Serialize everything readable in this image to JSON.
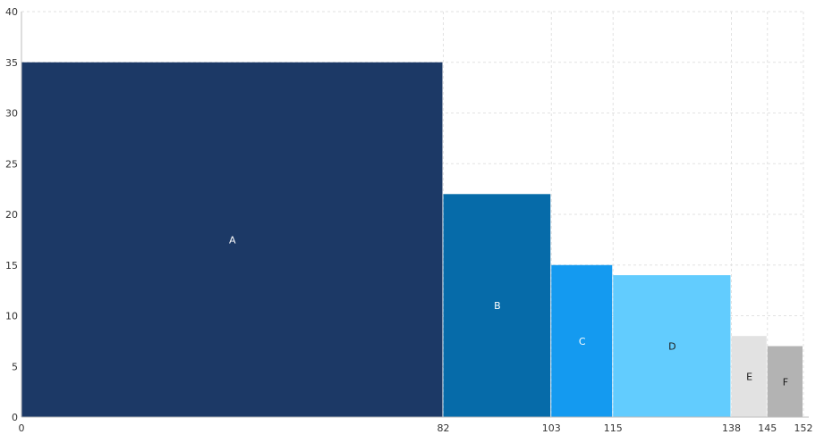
{
  "chart_data": {
    "type": "bar",
    "variant": "variable-width (marimekko)",
    "title": "",
    "xlabel": "",
    "ylabel": "",
    "xlim": [
      0,
      152
    ],
    "ylim": [
      0,
      40
    ],
    "x_ticks": [
      0,
      82,
      103,
      115,
      138,
      145,
      152
    ],
    "y_ticks": [
      0,
      5,
      10,
      15,
      20,
      25,
      30,
      35,
      40
    ],
    "grid": "both",
    "legend": "none",
    "bars": [
      {
        "label": "A",
        "x_start": 0,
        "x_end": 82,
        "value": 35,
        "color": "#1c3966",
        "label_color": "#ffffff"
      },
      {
        "label": "B",
        "x_start": 82,
        "x_end": 103,
        "value": 22,
        "color": "#066ba9",
        "label_color": "#ffffff"
      },
      {
        "label": "C",
        "x_start": 103,
        "x_end": 115,
        "value": 15,
        "color": "#149af0",
        "label_color": "#ffffff"
      },
      {
        "label": "D",
        "x_start": 115,
        "x_end": 138,
        "value": 14,
        "color": "#62ccfe",
        "label_color": "#1a1a1a"
      },
      {
        "label": "E",
        "x_start": 138,
        "x_end": 145,
        "value": 8,
        "color": "#e2e2e2",
        "label_color": "#1a1a1a"
      },
      {
        "label": "F",
        "x_start": 145,
        "x_end": 152,
        "value": 7,
        "color": "#b3b3b3",
        "label_color": "#1a1a1a"
      }
    ]
  }
}
